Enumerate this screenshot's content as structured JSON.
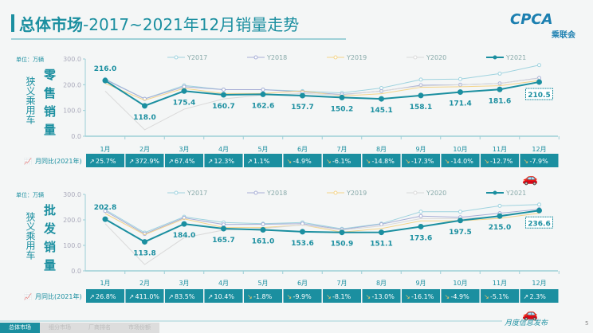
{
  "header": {
    "title_main": "总体市场",
    "title_sub": "-2017~2021年12月销量走势",
    "logo_text": "CPCA",
    "logo_sub": "乘联会"
  },
  "colors": {
    "accent": "#1b8fa0",
    "Y2017": "#9fd3df",
    "Y2018": "#a7aed6",
    "Y2019": "#f3d48a",
    "Y2020": "#d9d9d9",
    "Y2021": "#1b8fa0"
  },
  "chart_data": [
    {
      "type": "line",
      "unit": "单位：万辆",
      "side_label": "狭义乘用车",
      "metric_label": "零售销量",
      "ylim": [
        0,
        300
      ],
      "yticks": [
        "0.0",
        "100.0",
        "200.0",
        "300.0"
      ],
      "categories": [
        "1月",
        "2月",
        "3月",
        "4月",
        "5月",
        "6月",
        "7月",
        "8月",
        "9月",
        "10月",
        "11月",
        "12月"
      ],
      "series": [
        {
          "name": "Y2017",
          "values": [
            222,
            145,
            197,
            181,
            181,
            175,
            168,
            187,
            220,
            222,
            243,
            276
          ]
        },
        {
          "name": "Y2018",
          "values": [
            220,
            145,
            192,
            181,
            181,
            172,
            162,
            175,
            198,
            200,
            205,
            226
          ]
        },
        {
          "name": "Y2019",
          "values": [
            205,
            140,
            186,
            166,
            166,
            176,
            156,
            165,
            190,
            192,
            196,
            216
          ]
        },
        {
          "name": "Y2020",
          "values": [
            175,
            25,
            105,
            145,
            160,
            166,
            160,
            176,
            195,
            200,
            205,
            225
          ]
        },
        {
          "name": "Y2021",
          "values": [
            216.0,
            118.0,
            175.4,
            160.7,
            162.6,
            157.7,
            150.2,
            145.1,
            158.1,
            171.4,
            181.6,
            210.5
          ]
        }
      ],
      "yoy_label": "月同比(2021年)",
      "yoy": [
        "25.7%",
        "372.9%",
        "67.4%",
        "12.3%",
        "1.1%",
        "-4.9%",
        "-6.1%",
        "-14.8%",
        "-17.3%",
        "-14.0%",
        "-12.7%",
        "-7.9%"
      ]
    },
    {
      "type": "line",
      "unit": "单位：万辆",
      "side_label": "狭义乘用车",
      "metric_label": "批发销量",
      "ylim": [
        0,
        300
      ],
      "yticks": [
        "0.0",
        "100.0",
        "200.0",
        "300.0"
      ],
      "categories": [
        "1月",
        "2月",
        "3月",
        "4月",
        "5月",
        "6月",
        "7月",
        "8月",
        "9月",
        "10月",
        "11月",
        "12月"
      ],
      "series": [
        {
          "name": "Y2017",
          "values": [
            240,
            150,
            212,
            190,
            185,
            190,
            165,
            185,
            232,
            232,
            255,
            260
          ]
        },
        {
          "name": "Y2018",
          "values": [
            235,
            145,
            208,
            182,
            183,
            185,
            162,
            183,
            215,
            210,
            226,
            242
          ]
        },
        {
          "name": "Y2019",
          "values": [
            225,
            142,
            204,
            170,
            170,
            180,
            152,
            166,
            196,
            196,
            206,
            226
          ]
        },
        {
          "name": "Y2020",
          "values": [
            185,
            25,
            130,
            160,
            166,
            180,
            160,
            176,
            205,
            205,
            212,
            235
          ]
        },
        {
          "name": "Y2021",
          "values": [
            202.8,
            113.8,
            184.0,
            165.7,
            161.0,
            153.6,
            150.9,
            151.1,
            173.6,
            197.5,
            215.0,
            236.6
          ]
        }
      ],
      "yoy_label": "月同比(2021年)",
      "yoy": [
        "26.8%",
        "411.0%",
        "83.5%",
        "10.4%",
        "-1.8%",
        "-9.9%",
        "-8.1%",
        "-13.0%",
        "-16.1%",
        "-4.9%",
        "-5.1%",
        "2.3%"
      ]
    }
  ],
  "footer": {
    "tabs": [
      "总体市场",
      "细分市场",
      "厂商排名",
      "市场份额"
    ],
    "publish": "月度信息发布",
    "page": "5"
  }
}
